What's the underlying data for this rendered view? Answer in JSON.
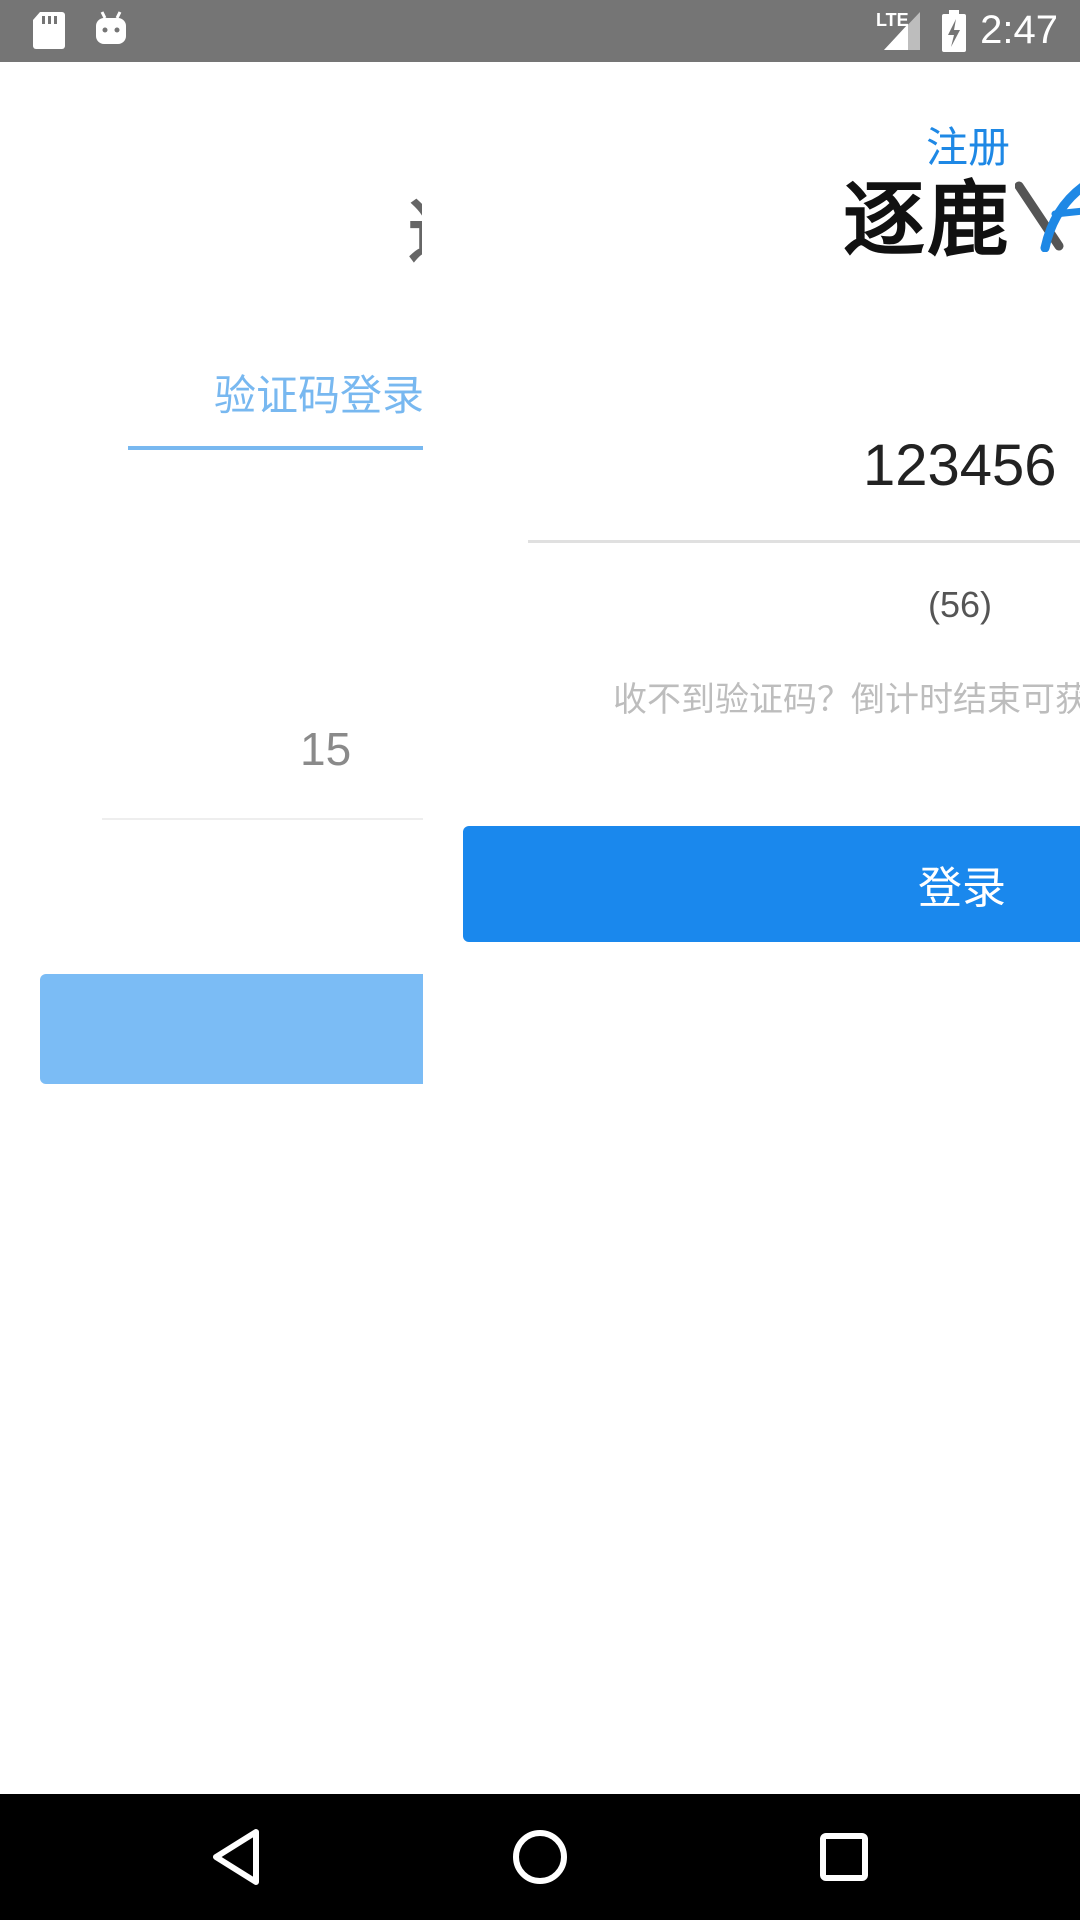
{
  "status_bar": {
    "time": "2:47",
    "network": "LTE",
    "left_icons": [
      "sd-card-icon",
      "android-icon"
    ],
    "right_icons": [
      "lte-signal-icon",
      "battery-charging-icon"
    ]
  },
  "back_page": {
    "title_fragment": "逐",
    "tab_label": "验证码登录",
    "phone_value": "15",
    "accent_color": "#78b8f0"
  },
  "front_page": {
    "register_label": "注册",
    "logo_text": "逐鹿",
    "code_value": "123456",
    "countdown": "(56)",
    "hint": "收不到验证码？倒计时结束可获取",
    "login_label": "登录",
    "accent_color": "#1a88ed"
  },
  "nav_bar": {
    "icons": [
      "back-triangle-icon",
      "home-circle-icon",
      "recents-square-icon"
    ]
  }
}
